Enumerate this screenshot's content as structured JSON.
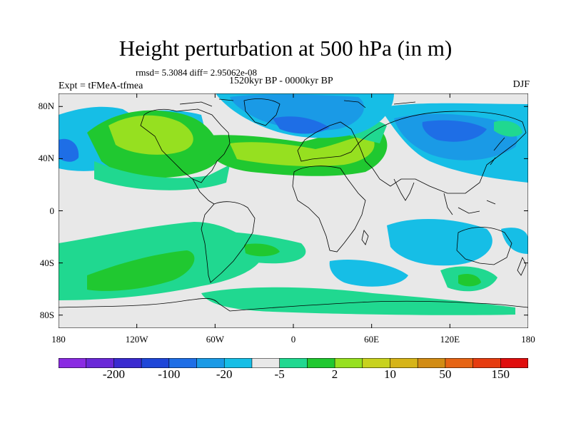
{
  "title": "Height perturbation at 500 hPa (in m)",
  "stats": "rmsd= 5.3084 diff= 2.95062e-08",
  "experiment": "Expt = tFMeA-tfmea",
  "period": "1520kyr BP - 0000kyr BP",
  "season": "DJF",
  "map": {
    "projection": "cylindrical equidistant",
    "lon_range": [
      -180,
      180
    ],
    "lat_range": [
      -90,
      90
    ],
    "x_ticks": [
      {
        "value": -180,
        "label": "180"
      },
      {
        "value": -120,
        "label": "120W"
      },
      {
        "value": -60,
        "label": "60W"
      },
      {
        "value": 0,
        "label": "0"
      },
      {
        "value": 60,
        "label": "60E"
      },
      {
        "value": 120,
        "label": "120E"
      },
      {
        "value": 180,
        "label": "180"
      }
    ],
    "y_ticks": [
      {
        "value": 80,
        "label": "80N"
      },
      {
        "value": 40,
        "label": "40N"
      },
      {
        "value": 0,
        "label": "0"
      },
      {
        "value": -40,
        "label": "40S"
      },
      {
        "value": -80,
        "label": "80S"
      }
    ],
    "background_color": "#e8e8e8"
  },
  "colorbar": {
    "bins": [
      "#8a2be2",
      "#6a28d8",
      "#3a2ad0",
      "#1e46d8",
      "#1e6ee6",
      "#1a9ae6",
      "#16bee6",
      "#e8e8e8",
      "#20d890",
      "#20c830",
      "#96e020",
      "#c8d21e",
      "#d6b418",
      "#d28c14",
      "#e66414",
      "#e63c10",
      "#e00e0e"
    ],
    "labels": [
      {
        "boundary": 2,
        "text": "-200"
      },
      {
        "boundary": 4,
        "text": "-100"
      },
      {
        "boundary": 6,
        "text": "-20"
      },
      {
        "boundary": 8,
        "text": "-5"
      },
      {
        "boundary": 10,
        "text": "2"
      },
      {
        "boundary": 12,
        "text": "10"
      },
      {
        "boundary": 14,
        "text": "50"
      },
      {
        "boundary": 16,
        "text": "150"
      }
    ]
  }
}
